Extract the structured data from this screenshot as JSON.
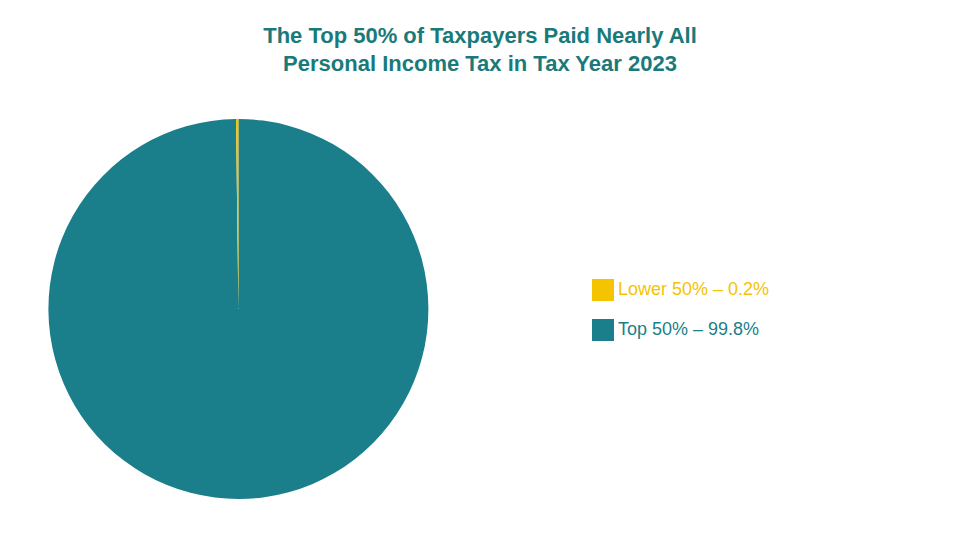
{
  "chart_data": {
    "type": "pie",
    "title": "The Top 50% of Taxpayers Paid Nearly All\nPersonal Income Tax in Tax Year 2023",
    "title_color": "#1a7a7a",
    "categories": [
      "Top 50% – 99.8%",
      "Lower 50% – 0.2%"
    ],
    "values": [
      99.8,
      0.2
    ],
    "colors": [
      "#1a7f8a",
      "#f5c400"
    ],
    "legend": "right"
  }
}
